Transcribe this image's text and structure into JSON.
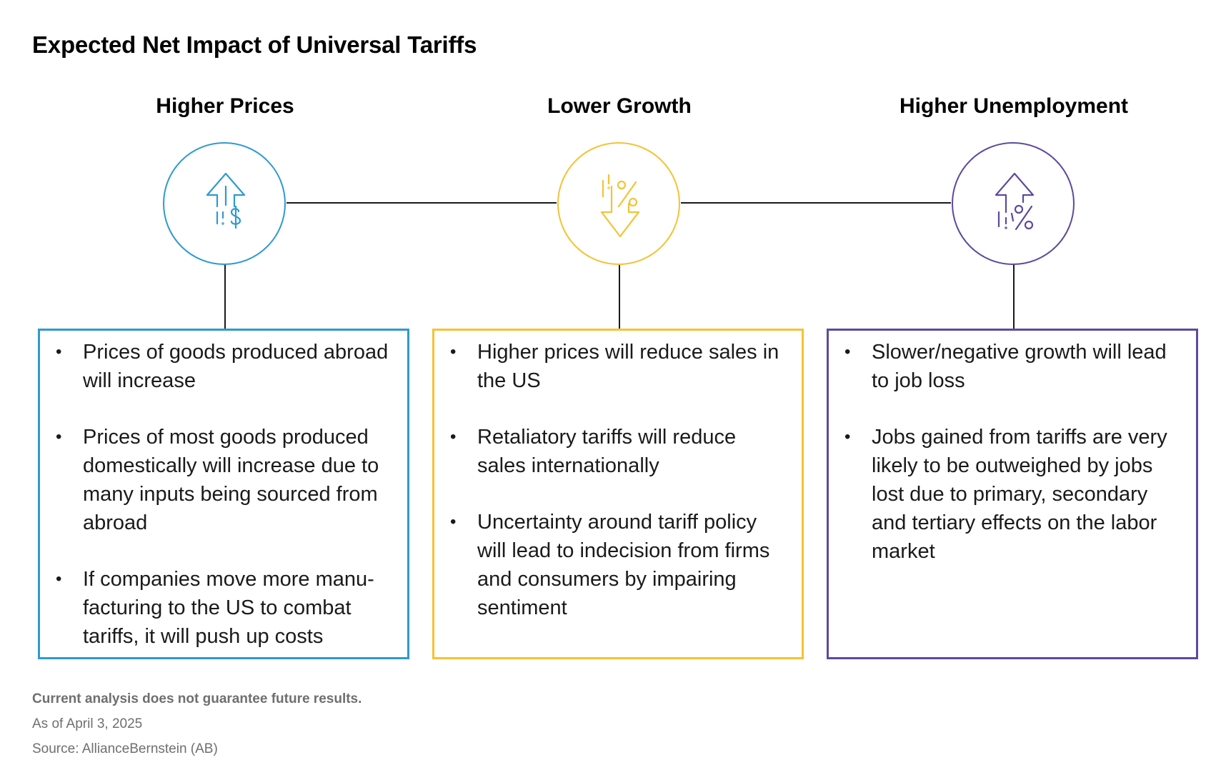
{
  "title": "Expected Net Impact of Universal Tariffs",
  "columns": [
    {
      "heading": "Higher Prices",
      "color": "#2E9AD0",
      "icon": "up-arrow-dollar-icon",
      "bullets": [
        "Prices of goods produced abroad will increase",
        "Prices of most goods produced domestically will increase due to many inputs being sourced from abroad",
        "If companies move more manu-facturing to the US to combat tariffs, it will push up costs"
      ]
    },
    {
      "heading": "Lower Growth",
      "color": "#F6C233",
      "icon": "down-arrow-percent-icon",
      "bullets": [
        "Higher prices will reduce sales in the US",
        "Retaliatory tariffs will reduce sales internationally",
        "Uncertainty around tariff policy will lead to indecision from firms and consumers by impairing sentiment"
      ]
    },
    {
      "heading": "Higher Unemployment",
      "color": "#5C4A9E",
      "icon": "up-arrow-percent-icon",
      "bullets": [
        "Slower/negative growth will lead to job loss",
        "Jobs gained from tariffs are very likely to be outweighed by jobs lost due to primary, secondary and tertiary effects on the labor market"
      ]
    }
  ],
  "footer": {
    "disclaimer": "Current analysis does not guarantee future results.",
    "date": "As of April 3, 2025",
    "source": "Source: AllianceBernstein (AB)"
  }
}
